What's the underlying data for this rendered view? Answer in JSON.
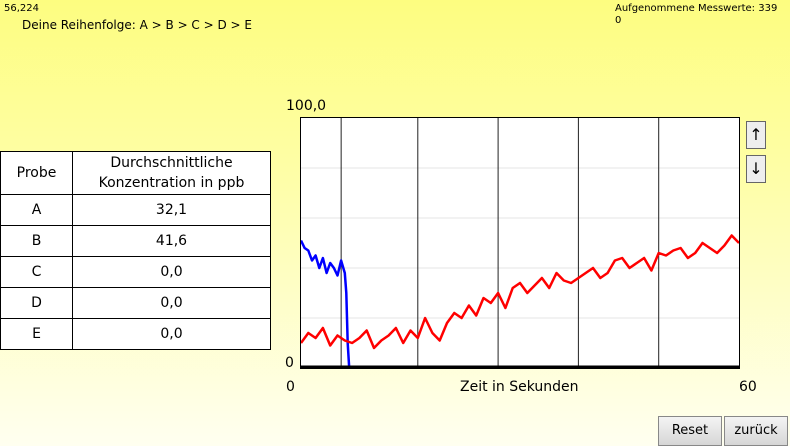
{
  "status": {
    "coordinate": "56,224",
    "order_text": "Deine Reihenfolge: A > B > C > D > E",
    "count_label": "Aufgenommene Messwerte: 339",
    "count_sub": "0"
  },
  "table": {
    "header_probe": "Probe",
    "header_conc_line1": "Durchschnittliche",
    "header_conc_line2": "Konzentration in ppb",
    "rows": [
      {
        "probe": "A",
        "value": "32,1"
      },
      {
        "probe": "B",
        "value": "41,6"
      },
      {
        "probe": "C",
        "value": "0,0"
      },
      {
        "probe": "D",
        "value": "0,0"
      },
      {
        "probe": "E",
        "value": "0,0"
      }
    ]
  },
  "buttons": {
    "up": "↑",
    "down": "↓",
    "reset": "Reset",
    "back": "zurück"
  },
  "chart_data": {
    "type": "line",
    "xlabel": "Zeit in Sekunden",
    "ylabel": "",
    "y_max_label": "100,0",
    "y_min_label": "0",
    "x_min_label": "0",
    "x_max_label": "60",
    "xlim": [
      0,
      60
    ],
    "ylim": [
      0,
      100
    ],
    "grid": true,
    "series": [
      {
        "color": "#0000ff",
        "x": [
          0,
          0.5,
          1,
          1.5,
          2,
          2.5,
          3,
          3.5,
          4,
          4.5,
          5,
          5.5,
          6,
          6.2,
          6.4,
          6.6
        ],
        "y": [
          51,
          48,
          47,
          43,
          45,
          40,
          44,
          38,
          42,
          40,
          37,
          43,
          38,
          30,
          10,
          0
        ]
      },
      {
        "color": "#ff0000",
        "x": [
          0,
          1,
          2,
          3,
          4,
          5,
          6,
          7,
          8,
          9,
          10,
          11,
          12,
          13,
          14,
          15,
          16,
          17,
          18,
          19,
          20,
          21,
          22,
          23,
          24,
          25,
          26,
          27,
          28,
          29,
          30,
          31,
          32,
          33,
          34,
          35,
          36,
          37,
          38,
          39,
          40,
          41,
          42,
          43,
          44,
          45,
          46,
          47,
          48,
          49,
          50,
          51,
          52,
          53,
          54,
          55,
          56,
          57,
          58,
          59,
          60
        ],
        "y": [
          10,
          14,
          12,
          16,
          9,
          13,
          11,
          10,
          12,
          15,
          8,
          11,
          13,
          16,
          10,
          15,
          12,
          20,
          14,
          11,
          18,
          22,
          20,
          25,
          21,
          28,
          26,
          30,
          24,
          32,
          34,
          30,
          33,
          36,
          32,
          38,
          35,
          34,
          36,
          38,
          40,
          36,
          38,
          43,
          44,
          40,
          42,
          44,
          39,
          46,
          45,
          47,
          48,
          44,
          46,
          50,
          48,
          46,
          49,
          53,
          50
        ]
      }
    ]
  }
}
